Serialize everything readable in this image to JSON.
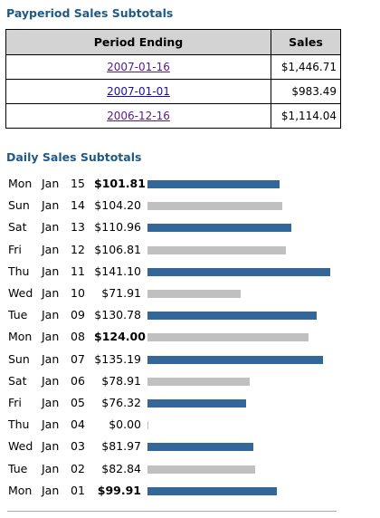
{
  "payperiod": {
    "title": "Payperiod Sales Subtotals",
    "headers": {
      "period": "Period Ending",
      "sales": "Sales"
    },
    "rows": [
      {
        "period": "2007-01-16",
        "sales": "$1,446.71",
        "visited": true
      },
      {
        "period": "2007-01-01",
        "sales": "$983.49",
        "visited": false
      },
      {
        "period": "2006-12-16",
        "sales": "$1,114.04",
        "visited": true
      }
    ]
  },
  "daily": {
    "title": "Daily Sales Subtotals",
    "colors": {
      "primary": "#336699",
      "alternate": "#c0c0c0",
      "title": "#1f5a86"
    },
    "bar_max_value": 141.1,
    "rows": [
      {
        "dow": "Mon",
        "month": "Jan",
        "day": "15",
        "amount": "$101.81",
        "value": 101.81,
        "bold": true
      },
      {
        "dow": "Sun",
        "month": "Jan",
        "day": "14",
        "amount": "$104.20",
        "value": 104.2,
        "bold": false
      },
      {
        "dow": "Sat",
        "month": "Jan",
        "day": "13",
        "amount": "$110.96",
        "value": 110.96,
        "bold": false
      },
      {
        "dow": "Fri",
        "month": "Jan",
        "day": "12",
        "amount": "$106.81",
        "value": 106.81,
        "bold": false
      },
      {
        "dow": "Thu",
        "month": "Jan",
        "day": "11",
        "amount": "$141.10",
        "value": 141.1,
        "bold": false
      },
      {
        "dow": "Wed",
        "month": "Jan",
        "day": "10",
        "amount": "$71.91",
        "value": 71.91,
        "bold": false
      },
      {
        "dow": "Tue",
        "month": "Jan",
        "day": "09",
        "amount": "$130.78",
        "value": 130.78,
        "bold": false
      },
      {
        "dow": "Mon",
        "month": "Jan",
        "day": "08",
        "amount": "$124.00",
        "value": 124.0,
        "bold": true
      },
      {
        "dow": "Sun",
        "month": "Jan",
        "day": "07",
        "amount": "$135.19",
        "value": 135.19,
        "bold": false
      },
      {
        "dow": "Sat",
        "month": "Jan",
        "day": "06",
        "amount": "$78.91",
        "value": 78.91,
        "bold": false
      },
      {
        "dow": "Fri",
        "month": "Jan",
        "day": "05",
        "amount": "$76.32",
        "value": 76.32,
        "bold": false
      },
      {
        "dow": "Thu",
        "month": "Jan",
        "day": "04",
        "amount": "$0.00",
        "value": 0.0,
        "bold": false
      },
      {
        "dow": "Wed",
        "month": "Jan",
        "day": "03",
        "amount": "$81.97",
        "value": 81.97,
        "bold": false
      },
      {
        "dow": "Tue",
        "month": "Jan",
        "day": "02",
        "amount": "$82.84",
        "value": 82.84,
        "bold": false
      },
      {
        "dow": "Mon",
        "month": "Jan",
        "day": "01",
        "amount": "$99.91",
        "value": 99.91,
        "bold": true
      }
    ]
  }
}
